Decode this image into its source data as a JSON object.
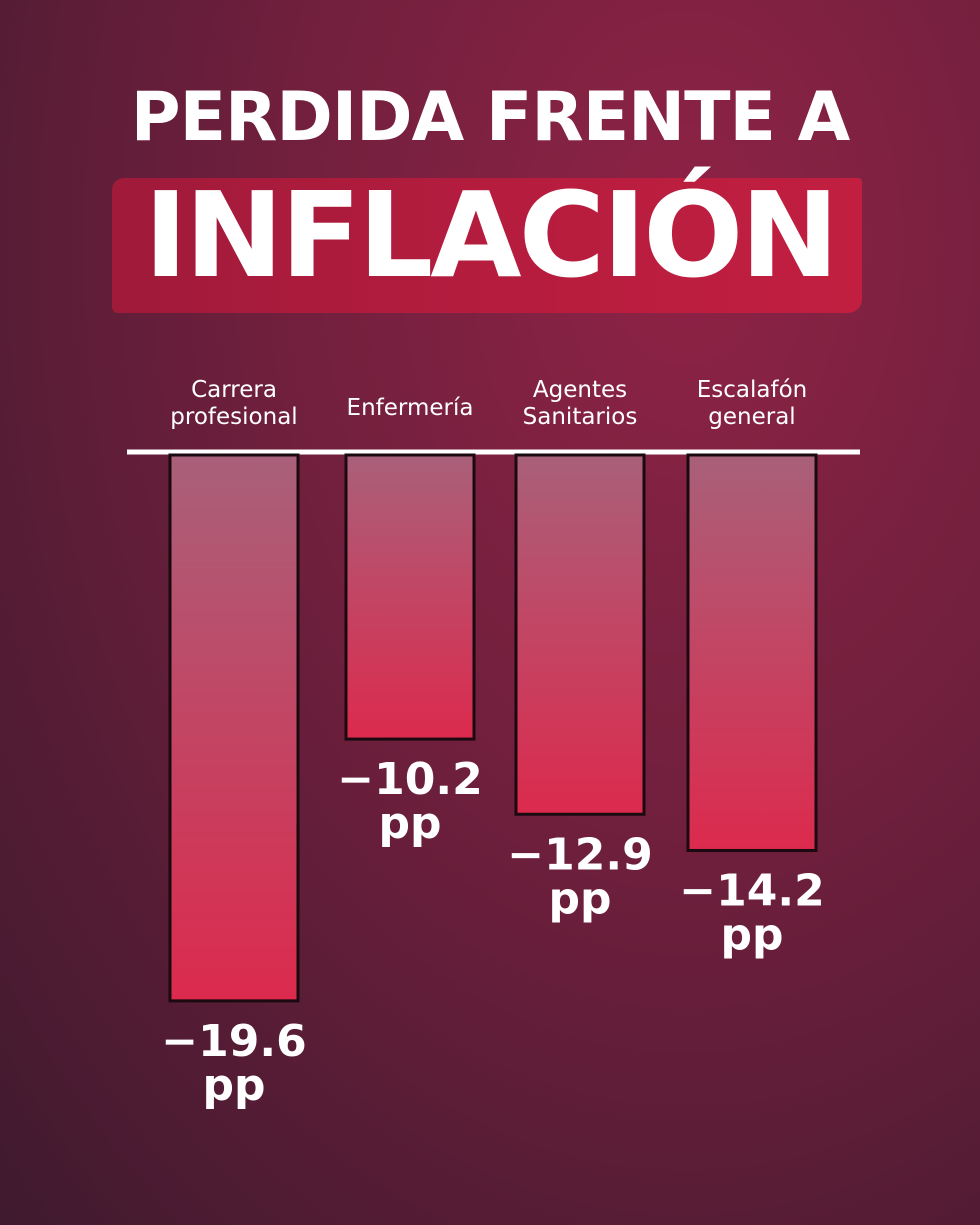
{
  "title": {
    "line1": "PERDIDA FRENTE A",
    "line2": "INFLACIÓN"
  },
  "colors": {
    "bar_top": "#a9607a",
    "bar_bottom": "#dc2a4d",
    "highlight": "#b51c3e"
  },
  "chart_data": {
    "type": "bar",
    "orientation": "vertical",
    "direction": "downward",
    "categories": [
      [
        "Carrera",
        "profesional"
      ],
      [
        "Enfermería"
      ],
      [
        "Agentes",
        "Sanitarios"
      ],
      [
        "Escalafón",
        "general"
      ]
    ],
    "values": [
      -19.6,
      -10.2,
      -12.9,
      -14.2
    ],
    "value_labels": [
      [
        "−19.6",
        "pp"
      ],
      [
        "−10.2",
        "pp"
      ],
      [
        "−12.9",
        "pp"
      ],
      [
        "−14.2",
        "pp"
      ]
    ],
    "unit": "pp",
    "ylim": [
      -20,
      0
    ],
    "grid": false,
    "legend": "none"
  }
}
